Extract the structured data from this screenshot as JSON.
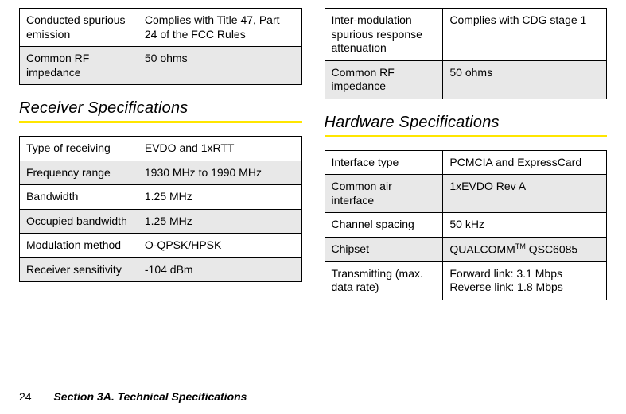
{
  "leftTopTable": {
    "rows": [
      {
        "label": "Conducted spurious emission",
        "value": "Complies with Title 47, Part 24 of the FCC Rules",
        "shaded": false
      },
      {
        "label": "Common RF impedance",
        "value": "50 ohms",
        "shaded": true
      }
    ]
  },
  "receiverSection": {
    "title": "Receiver Specifications",
    "rows": [
      {
        "label": "Type of receiving",
        "value": "EVDO and 1xRTT",
        "shaded": false
      },
      {
        "label": "Frequency range",
        "value": "1930 MHz to 1990 MHz",
        "shaded": true
      },
      {
        "label": "Bandwidth",
        "value": "1.25 MHz",
        "shaded": false
      },
      {
        "label": "Occupied bandwidth",
        "value": "1.25 MHz",
        "shaded": true
      },
      {
        "label": "Modulation method",
        "value": "O-QPSK/HPSK",
        "shaded": false
      },
      {
        "label": "Receiver sensitivity",
        "value": "-104 dBm",
        "shaded": true
      }
    ]
  },
  "rightTopTable": {
    "rows": [
      {
        "label": "Inter-modulation spurious response attenuation",
        "value": "Complies with CDG stage 1",
        "shaded": false
      },
      {
        "label": "Common RF impedance",
        "value": "50 ohms",
        "shaded": true
      }
    ]
  },
  "hardwareSection": {
    "title": "Hardware Specifications",
    "rows": [
      {
        "label": "Interface type",
        "value": "PCMCIA and ExpressCard",
        "shaded": false
      },
      {
        "label": "Common air interface",
        "value": "1xEVDO Rev A",
        "shaded": true
      },
      {
        "label": "Channel spacing",
        "value": "50 kHz",
        "shaded": false
      },
      {
        "label": "Chipset",
        "value_html": "QUALCOMM<span class='tm'>TM</span> QSC6085",
        "shaded": true
      },
      {
        "label": "Transmitting (max. data rate)",
        "value_html": "Forward link: 3.1 Mbps<br>Reverse link: 1.8 Mbps",
        "shaded": false
      }
    ]
  },
  "footer": {
    "pageNumber": "24",
    "sectionLabel": "Section 3A. Technical Specifications"
  },
  "style": {
    "accent_color": "#ffe600",
    "shade_color": "#e8e8e8",
    "border_color": "#000000",
    "font_size_cell": 14,
    "font_size_heading": 20
  }
}
